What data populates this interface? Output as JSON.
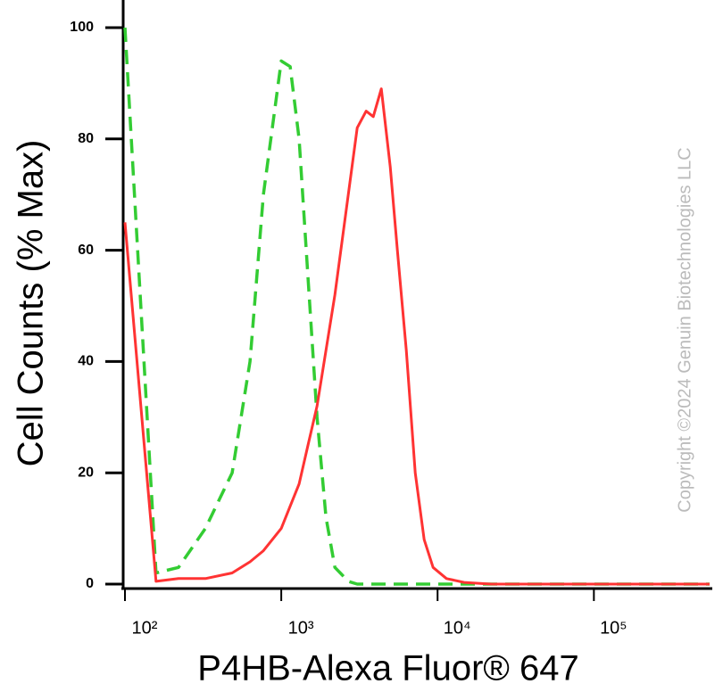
{
  "chart_data": {
    "type": "line",
    "xlabel": "P4HB-Alexa Fluor® 647",
    "ylabel": "Cell Counts (% Max)",
    "watermark": "Copyright ©2024 Genuin Biotechnologies LLC",
    "xscale": "log",
    "x": [
      100,
      158,
      220,
      327,
      485,
      631,
      769,
      877,
      1000,
      1140,
      1300,
      1483,
      1693,
      1931,
      2203,
      2683,
      3060,
      3490,
      3877,
      4365,
      4980,
      5530,
      6310,
      7200,
      8210,
      9360,
      11400,
      14800,
      22000,
      42500,
      158000,
      550000
    ],
    "series": [
      {
        "color": "#33cc33",
        "dash": true,
        "values": [
          100,
          2,
          3,
          10,
          20,
          40,
          70,
          82,
          94,
          93,
          80,
          55,
          30,
          12,
          3,
          0.5,
          0,
          0,
          0,
          0,
          0,
          0,
          0,
          0,
          0,
          0,
          0,
          0,
          0,
          0,
          0,
          0
        ]
      },
      {
        "color": "#ff3333",
        "dash": false,
        "values": [
          65,
          0.5,
          1,
          1,
          2,
          4,
          6,
          8,
          10,
          14,
          18,
          25,
          32,
          42,
          52,
          70,
          82,
          85,
          84,
          89,
          75,
          60,
          42,
          20,
          8,
          3,
          1,
          0.3,
          0,
          0,
          0,
          0
        ]
      }
    ],
    "xlim": [
      100,
      550000
    ],
    "xticks": [
      {
        "value": 100,
        "label": "10²"
      },
      {
        "value": 1000,
        "label": "10³"
      },
      {
        "value": 10000,
        "label": "10⁴"
      },
      {
        "value": 100000,
        "label": "10⁵"
      }
    ],
    "ylim": [
      0,
      100
    ],
    "yticks": [
      0,
      20,
      40,
      60,
      80,
      100
    ]
  }
}
